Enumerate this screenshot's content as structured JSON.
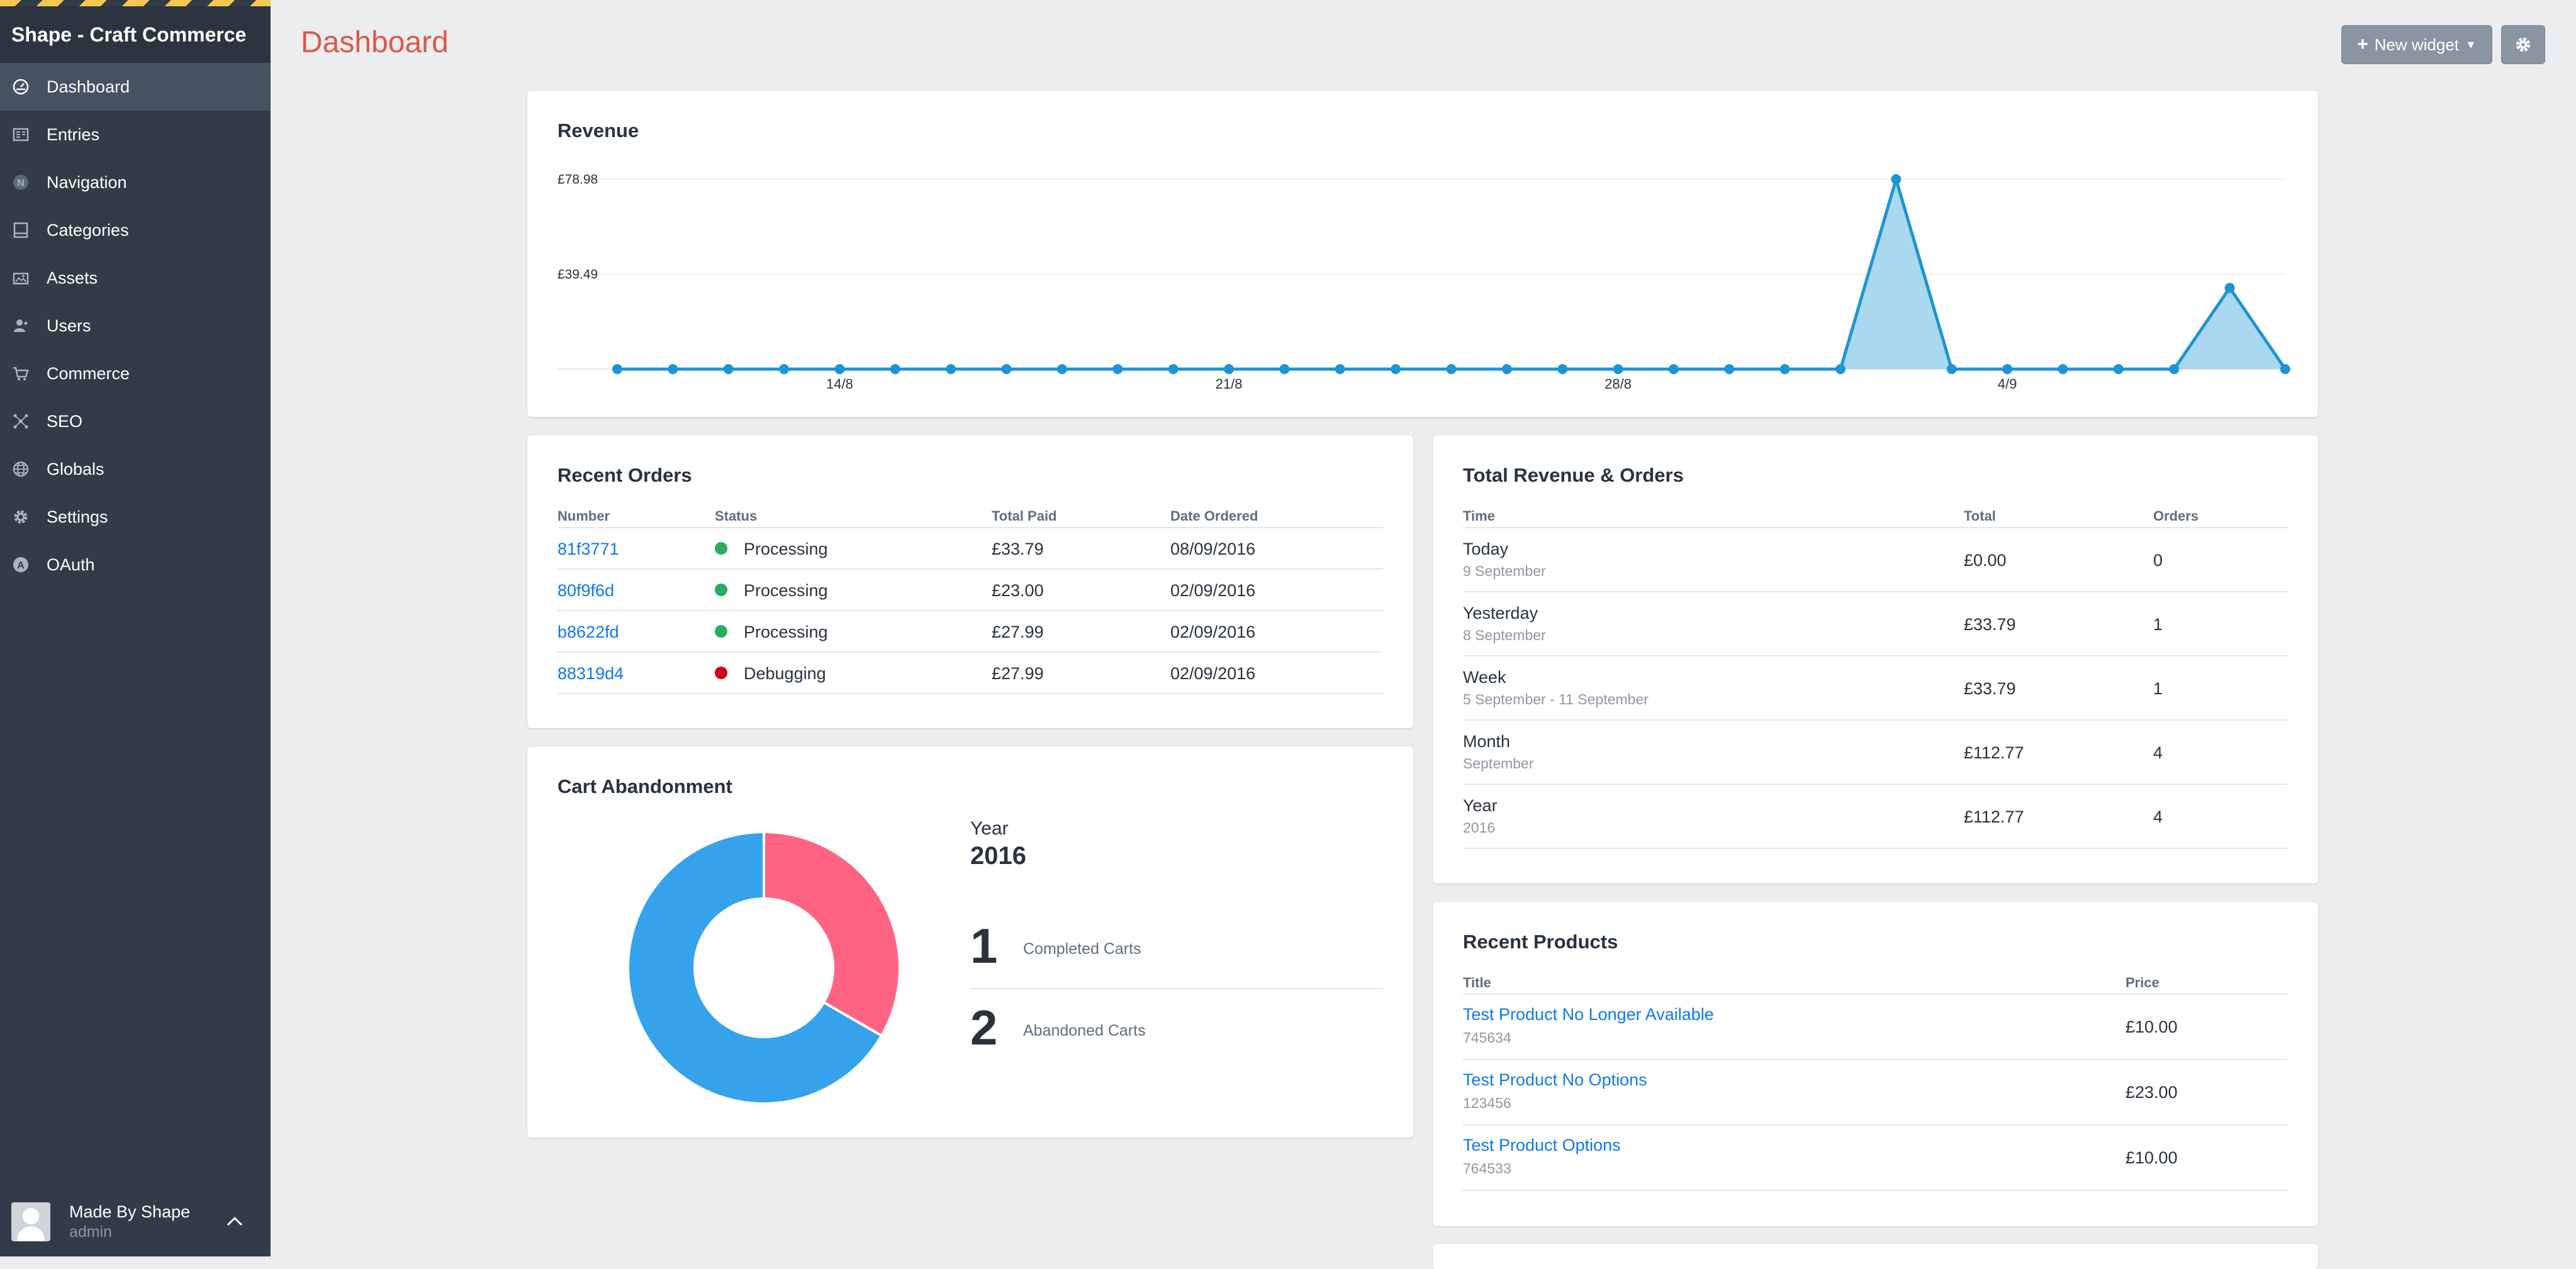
{
  "sidebar": {
    "site_name": "Shape - Craft Commerce",
    "items": [
      {
        "label": "Dashboard",
        "icon": "dashboard-gauge-icon"
      },
      {
        "label": "Entries",
        "icon": "entries-icon"
      },
      {
        "label": "Navigation",
        "icon": "navigation-n-icon",
        "icon_glyph": "N"
      },
      {
        "label": "Categories",
        "icon": "categories-icon"
      },
      {
        "label": "Assets",
        "icon": "assets-image-icon"
      },
      {
        "label": "Users",
        "icon": "users-icon"
      },
      {
        "label": "Commerce",
        "icon": "shopping-cart-icon"
      },
      {
        "label": "SEO",
        "icon": "seo-network-icon"
      },
      {
        "label": "Globals",
        "icon": "globe-icon"
      },
      {
        "label": "Settings",
        "icon": "gear-icon"
      },
      {
        "label": "OAuth",
        "icon": "oauth-a-icon",
        "icon_glyph": "A"
      }
    ],
    "user": {
      "name": "Made By Shape",
      "role": "admin"
    }
  },
  "header": {
    "title": "Dashboard",
    "new_widget_label": "New widget",
    "new_widget_icon": "plus-icon",
    "settings_icon": "gear-icon"
  },
  "revenue": {
    "title": "Revenue",
    "chart_data": {
      "type": "area",
      "y_tick_labels": [
        "£78.98",
        "£39.49"
      ],
      "y_ticks": [
        78.98,
        39.49
      ],
      "ylim": [
        0,
        78.98
      ],
      "x_tick_labels": [
        {
          "index": 4,
          "label": "14/8"
        },
        {
          "index": 11,
          "label": "21/8"
        },
        {
          "index": 18,
          "label": "28/8"
        },
        {
          "index": 25,
          "label": "4/9"
        }
      ],
      "values": [
        0,
        0,
        0,
        0,
        0,
        0,
        0,
        0,
        0,
        0,
        0,
        0,
        0,
        0,
        0,
        0,
        0,
        0,
        0,
        0,
        0,
        0,
        0,
        78.98,
        0,
        0,
        0,
        0,
        0,
        33.79,
        0
      ],
      "grid": true,
      "line_color": "#1f94d2",
      "fill_color": "#a9d8ef"
    }
  },
  "recent_orders": {
    "title": "Recent Orders",
    "columns": [
      "Number",
      "Status",
      "Total Paid",
      "Date Ordered"
    ],
    "rows": [
      {
        "number": "81f3771",
        "status": "Processing",
        "status_color": "#27ae60",
        "total": "£33.79",
        "date": "08/09/2016"
      },
      {
        "number": "80f9f6d",
        "status": "Processing",
        "status_color": "#27ae60",
        "total": "£23.00",
        "date": "02/09/2016"
      },
      {
        "number": "b8622fd",
        "status": "Processing",
        "status_color": "#27ae60",
        "total": "£27.99",
        "date": "02/09/2016"
      },
      {
        "number": "88319d4",
        "status": "Debugging",
        "status_color": "#d0021b",
        "total": "£27.99",
        "date": "02/09/2016"
      }
    ]
  },
  "total_revenue": {
    "title": "Total Revenue & Orders",
    "columns": [
      "Time",
      "Total",
      "Orders"
    ],
    "rows": [
      {
        "period": "Today",
        "sub": "9 September",
        "total": "£0.00",
        "orders": "0"
      },
      {
        "period": "Yesterday",
        "sub": "8 September",
        "total": "£33.79",
        "orders": "1"
      },
      {
        "period": "Week",
        "sub": "5 September - 11 September",
        "total": "£33.79",
        "orders": "1"
      },
      {
        "period": "Month",
        "sub": "September",
        "total": "£112.77",
        "orders": "4"
      },
      {
        "period": "Year",
        "sub": "2016",
        "total": "£112.77",
        "orders": "4"
      }
    ]
  },
  "cart_abandonment": {
    "title": "Cart Abandonment",
    "year_label": "Year",
    "year": "2016",
    "completed_count": "1",
    "completed_label": "Completed Carts",
    "abandoned_count": "2",
    "abandoned_label": "Abandoned Carts",
    "chart_data": {
      "type": "pie",
      "slices": [
        {
          "value": 1,
          "color": "#ff6384"
        },
        {
          "value": 2,
          "color": "#36a2eb"
        }
      ]
    }
  },
  "recent_products": {
    "title": "Recent Products",
    "columns": [
      "Title",
      "Price"
    ],
    "rows": [
      {
        "title": "Test Product No Longer Available",
        "sku": "745634",
        "price": "£10.00"
      },
      {
        "title": "Test Product No Options",
        "sku": "123456",
        "price": "£23.00"
      },
      {
        "title": "Test Product Options",
        "sku": "764533",
        "price": "£10.00"
      }
    ]
  }
}
